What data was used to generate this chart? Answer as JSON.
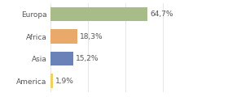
{
  "categories": [
    "Europa",
    "Africa",
    "Asia",
    "America"
  ],
  "values": [
    64.7,
    18.3,
    15.2,
    1.9
  ],
  "labels": [
    "64,7%",
    "18,3%",
    "15,2%",
    "1,9%"
  ],
  "bar_colors": [
    "#a8bc8a",
    "#e8a96a",
    "#6b82b8",
    "#f0d060"
  ],
  "background_color": "#ffffff",
  "xlim": [
    0,
    100
  ],
  "bar_height": 0.65,
  "label_fontsize": 6.5,
  "category_fontsize": 6.5,
  "grid_color": "#dddddd",
  "text_color": "#555555"
}
